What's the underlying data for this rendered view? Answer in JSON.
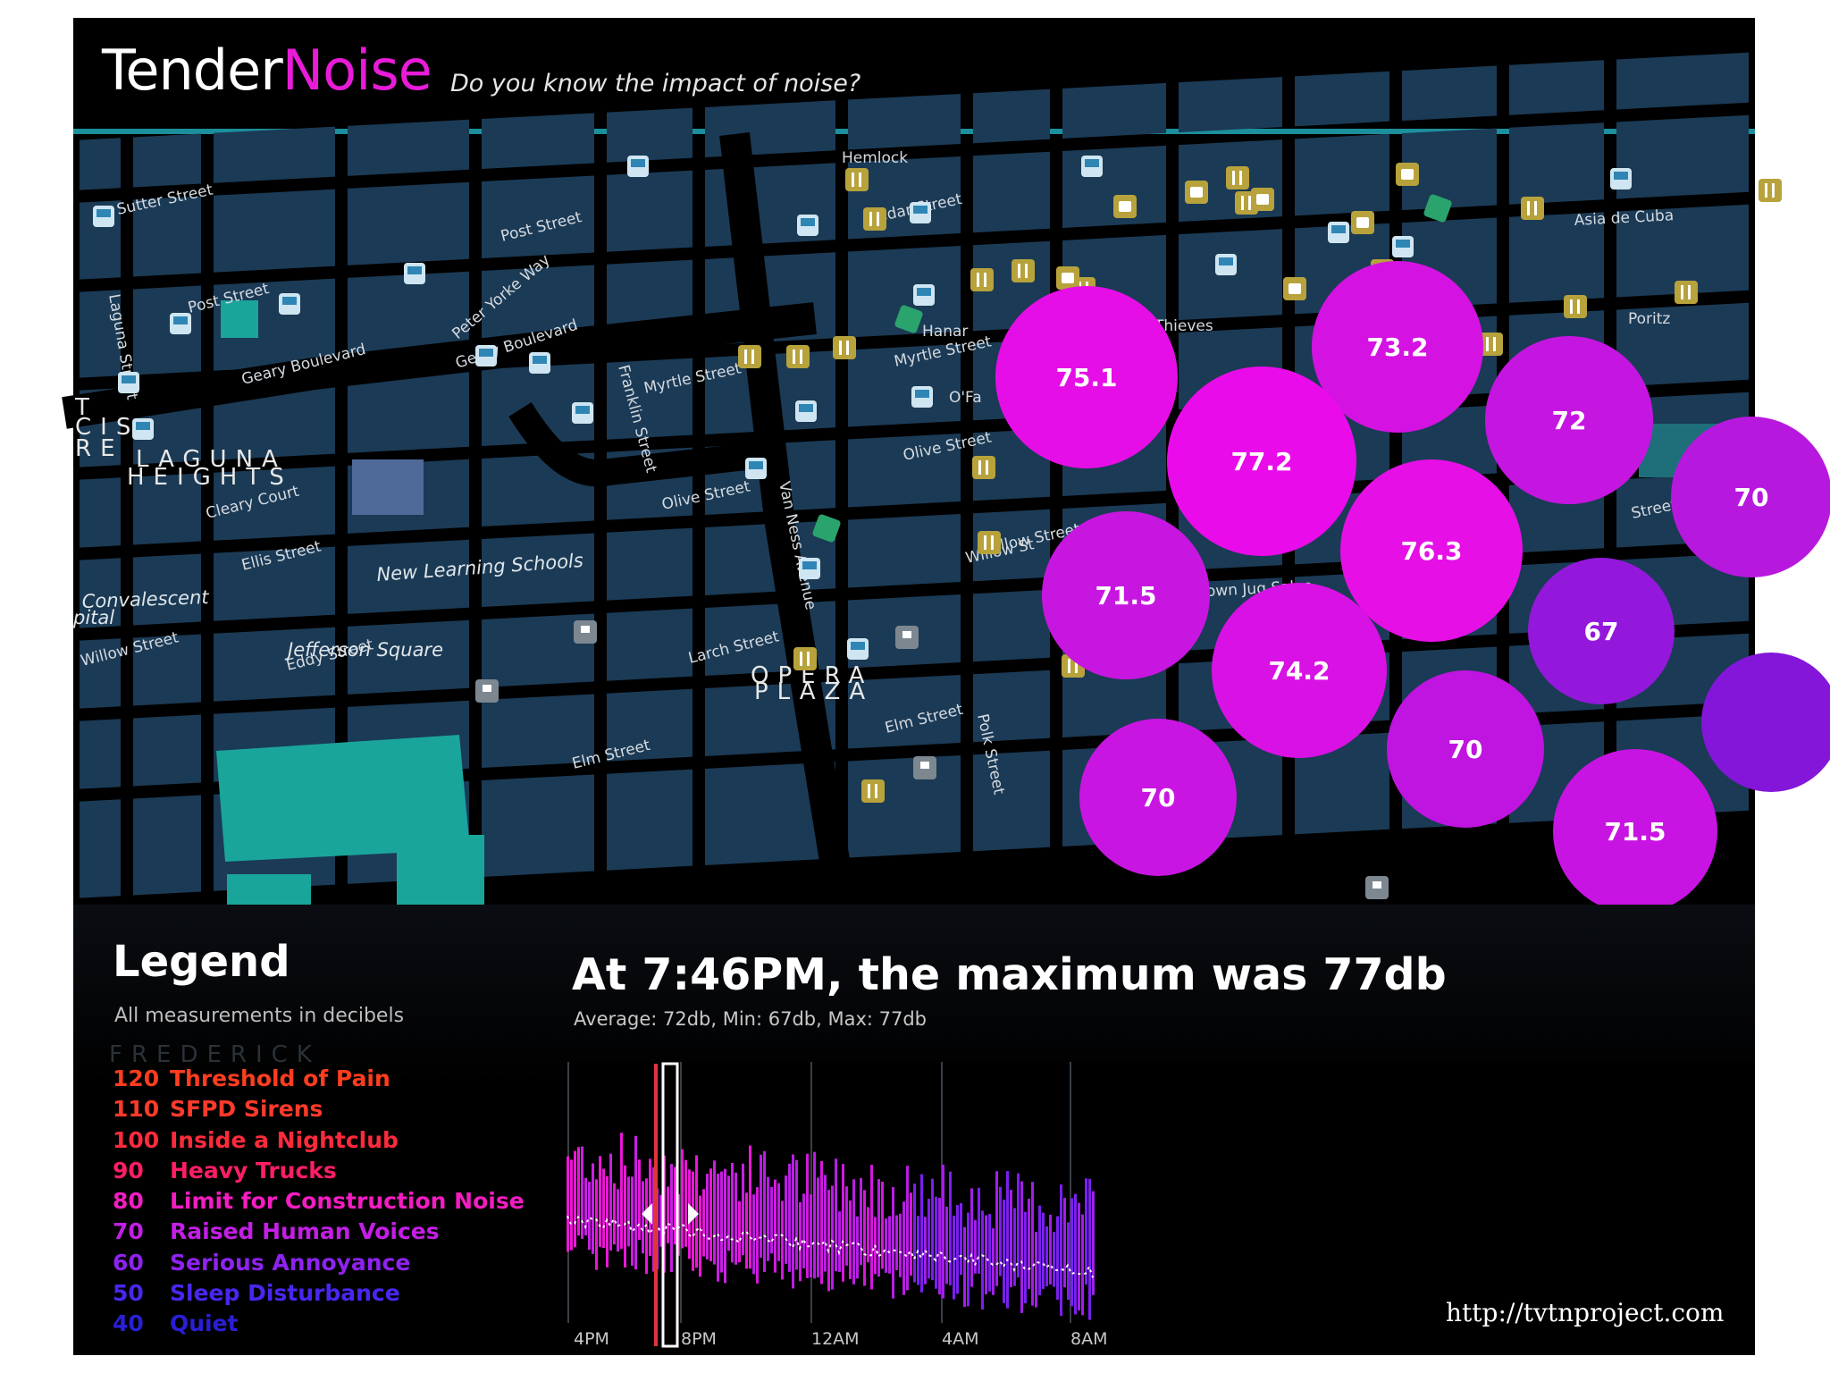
{
  "app": {
    "brand_part1": "Tender",
    "brand_part2": "Noise",
    "tagline": "Do you know the impact of noise?",
    "colors": {
      "brand_pink": "#e81bd8",
      "accent_line": "#1c8f9c",
      "map_block": "#1b3a55",
      "map_road": "#000000",
      "map_park": "#1aa59a"
    }
  },
  "map": {
    "street_labels": [
      "Sutter Street",
      "Laguna Street",
      "Post Street",
      "Post Street",
      "Geary Boulevard",
      "Peter Yorke Way",
      "Geary Boulevard",
      "Franklin Street",
      "Myrtle Street",
      "Olive Street",
      "Van Ness Avenue",
      "Hemlock",
      "Cedar Street",
      "Hanar",
      "Myrtle Street",
      "O'Fa",
      "Olive Street",
      "Cleary Court",
      "Ellis Street",
      "Willow Street",
      "Willow Street",
      "Eddy Street",
      "Larch Street",
      "Elm Street",
      "Elm Street",
      "Polk Street",
      "Willow St",
      "Brown Jug Saloo",
      "Asia de Cuba",
      "Poritz",
      "Thieves",
      "Street"
    ],
    "neighborhood_labels": [
      "LAGUNA",
      "HEIGHTS",
      "OPERA",
      "PLAZA",
      "T",
      "CIS",
      "RE"
    ],
    "place_labels": [
      "New Learning Schools",
      "Jefferson Square",
      "Convalescent",
      "pital"
    ],
    "noise_readings": [
      {
        "value": "75.1",
        "color": "#e60ee6"
      },
      {
        "value": "73.2",
        "color": "#d412e2"
      },
      {
        "value": "72",
        "color": "#c515e0"
      },
      {
        "value": "77.2",
        "color": "#ea0bea"
      },
      {
        "value": "76.3",
        "color": "#e60fe6"
      },
      {
        "value": "70",
        "color": "#b718de"
      },
      {
        "value": "71.5",
        "color": "#c716e0"
      },
      {
        "value": "74.2",
        "color": "#d811e4"
      },
      {
        "value": "67",
        "color": "#9418dc"
      },
      {
        "value": "70",
        "color": "#c014e0"
      },
      {
        "value": "70",
        "color": "#c915e2"
      },
      {
        "value": "71.5",
        "color": "#c814e2"
      },
      {
        "value": "",
        "color": "#8316d8"
      }
    ],
    "icon_types": [
      "bus-stop-icon",
      "restaurant-icon",
      "cafe-icon",
      "school-icon",
      "park-icon"
    ]
  },
  "legend": {
    "title": "Legend",
    "subtitle": "All measurements in decibels",
    "items": [
      {
        "db": "120",
        "label": "Threshold of Pain",
        "color": "#ff3d1f"
      },
      {
        "db": "110",
        "label": "SFPD Sirens",
        "color": "#ff3a2a"
      },
      {
        "db": "100",
        "label": "Inside a Nightclub",
        "color": "#ff2a3c"
      },
      {
        "db": "90",
        "label": "Heavy Trucks",
        "color": "#ff1e64"
      },
      {
        "db": "80",
        "label": "Limit for Construction Noise",
        "color": "#f41cc2"
      },
      {
        "db": "70",
        "label": "Raised Human Voices",
        "color": "#c31ee6"
      },
      {
        "db": "60",
        "label": "Serious Annoyance",
        "color": "#8f22f0"
      },
      {
        "db": "50",
        "label": "Sleep Disturbance",
        "color": "#4a26f0"
      },
      {
        "db": "40",
        "label": "Quiet",
        "color": "#2a1fd6"
      }
    ],
    "faded_watermark": "FREDERICK"
  },
  "stats": {
    "headline": "At 7:46PM, the maximum was 77db",
    "summary": "Average: 72db, Min: 67db, Max: 77db"
  },
  "timeline": {
    "ticks": [
      "4PM",
      "8PM",
      "12AM",
      "4AM",
      "8AM"
    ],
    "selected_time": "7:46PM"
  },
  "footer": {
    "url": "http://tvtnproject.com"
  }
}
